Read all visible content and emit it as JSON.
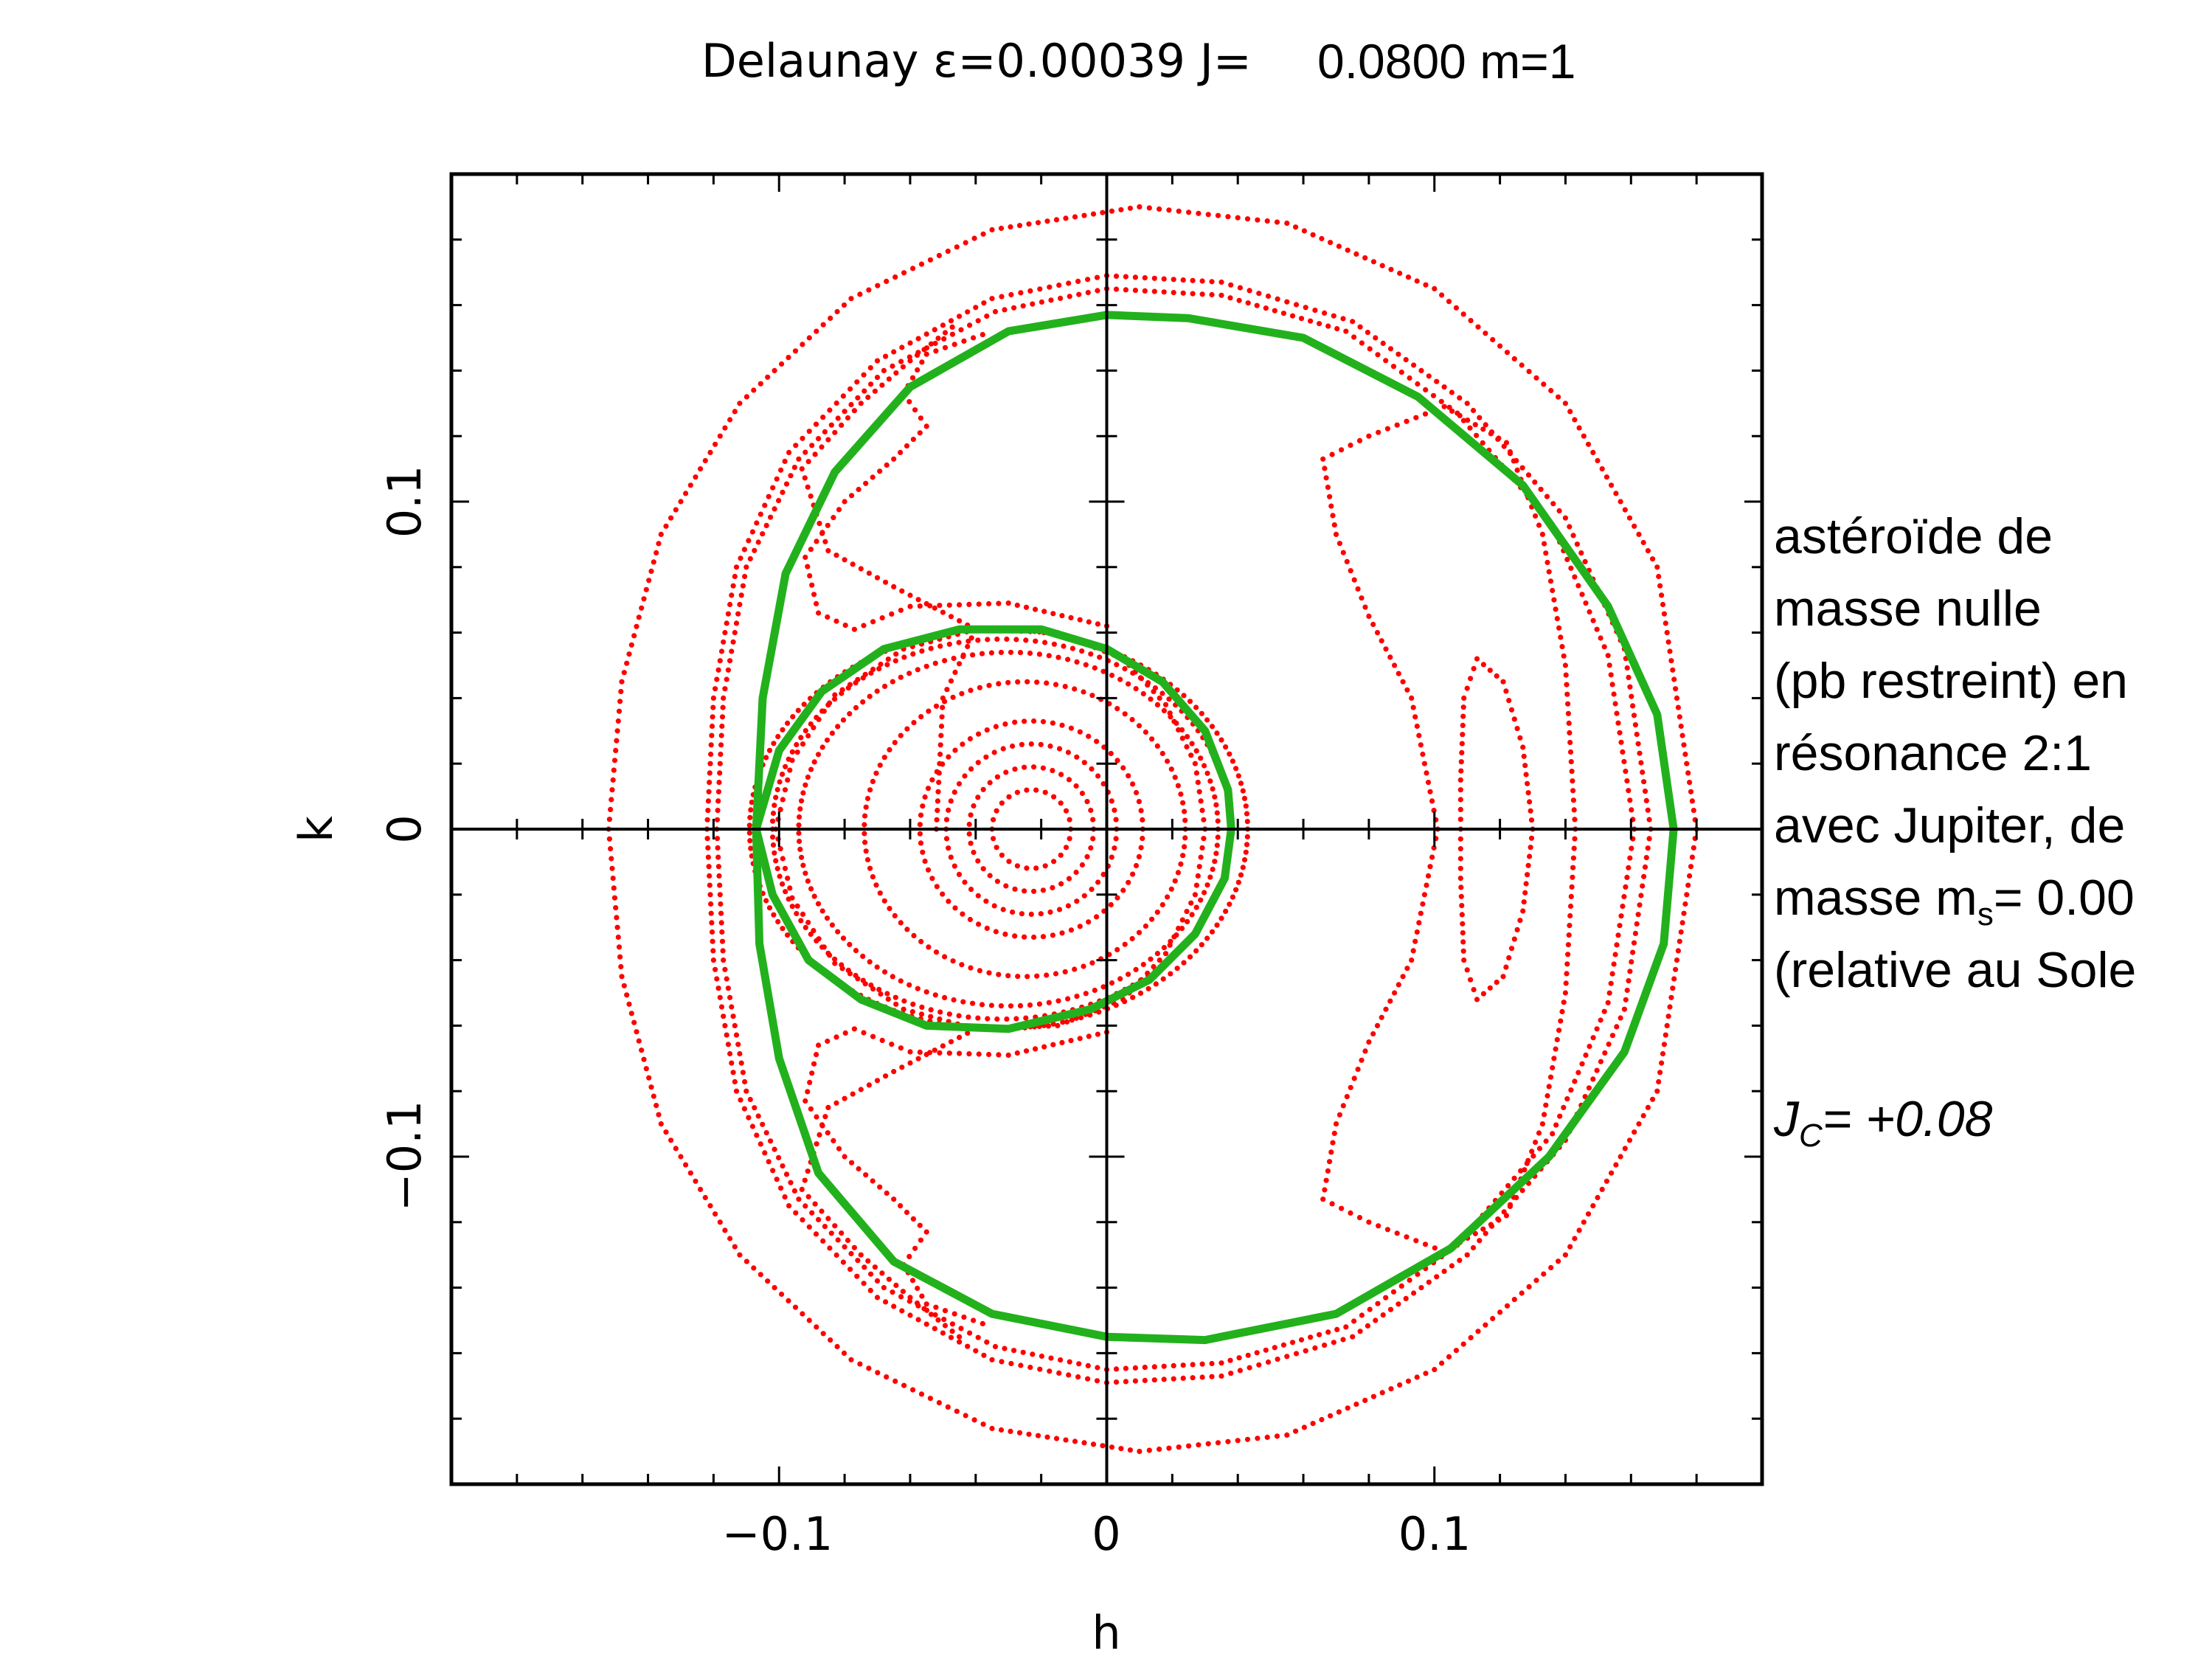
{
  "chart_data": {
    "type": "scatter",
    "title_left": "Delaunay ε=0.00039  J=",
    "title_right": "0.0800 m=1",
    "xlabel": "h",
    "ylabel": "k",
    "xlim": [
      -0.2,
      0.2
    ],
    "ylim": [
      -0.2,
      0.2
    ],
    "xticks": [
      -0.1,
      0,
      0.1
    ],
    "yticks": [
      -0.1,
      0,
      0.1
    ],
    "xtick_labels": [
      "−0.1",
      "0",
      "0.1"
    ],
    "ytick_labels": [
      "−0.1",
      "0",
      "0.1"
    ],
    "grid": false,
    "colors": {
      "trajectories": "#ff0000",
      "separatrix": "#22b11c",
      "axes": "#000000"
    },
    "series": [
      {
        "kind": "dotted-orbit",
        "shape": "ellipse",
        "cx": -0.023,
        "cy": 0.0,
        "rx": 0.012,
        "ry": 0.012
      },
      {
        "kind": "dotted-orbit",
        "shape": "ellipse",
        "cx": -0.023,
        "cy": 0.0,
        "rx": 0.019,
        "ry": 0.019
      },
      {
        "kind": "dotted-orbit",
        "shape": "ellipse",
        "cx": -0.023,
        "cy": 0.0,
        "rx": 0.026,
        "ry": 0.026
      },
      {
        "kind": "dotted-orbit",
        "shape": "ellipse",
        "cx": -0.023,
        "cy": 0.0,
        "rx": 0.034,
        "ry": 0.033
      },
      {
        "kind": "dotted-orbit",
        "shape": "ellipse",
        "cx": -0.025,
        "cy": 0.0,
        "rx": 0.049,
        "ry": 0.045
      },
      {
        "kind": "dotted-orbit",
        "shape": "ellipse",
        "cx": -0.03,
        "cy": 0.0,
        "rx": 0.064,
        "ry": 0.054
      },
      {
        "kind": "dotted-orbit",
        "shape": "ellipse",
        "cx": -0.032,
        "cy": 0.0,
        "rx": 0.07,
        "ry": 0.058
      },
      {
        "kind": "dotted-orbit",
        "shape": "ellipse",
        "cx": -0.033,
        "cy": 0.0,
        "rx": 0.076,
        "ry": 0.061
      },
      {
        "kind": "dotted-orbit",
        "shape": "polyline",
        "points": [
          [
            -0.101,
            0.0
          ],
          [
            -0.096,
            0.021
          ],
          [
            -0.083,
            0.041
          ],
          [
            -0.062,
            0.055
          ],
          [
            -0.04,
            0.061
          ],
          [
            -0.015,
            0.06
          ],
          [
            0.005,
            0.052
          ],
          [
            0.018,
            0.038
          ],
          [
            0.027,
            0.02
          ],
          [
            0.03,
            0.0
          ],
          [
            0.027,
            -0.02
          ],
          [
            0.018,
            -0.038
          ],
          [
            0.005,
            -0.052
          ],
          [
            -0.015,
            -0.06
          ],
          [
            -0.04,
            -0.061
          ],
          [
            -0.062,
            -0.055
          ],
          [
            -0.083,
            -0.041
          ],
          [
            -0.096,
            -0.021
          ],
          [
            -0.101,
            0.0
          ]
        ]
      },
      {
        "kind": "dotted-orbit",
        "shape": "polyline",
        "points": [
          [
            -0.0,
            0.062
          ],
          [
            -0.03,
            0.069
          ],
          [
            -0.06,
            0.068
          ],
          [
            -0.077,
            0.061
          ],
          [
            -0.088,
            0.066
          ],
          [
            -0.092,
            0.083
          ],
          [
            -0.08,
            0.1
          ],
          [
            -0.065,
            0.113
          ],
          [
            -0.055,
            0.123
          ],
          [
            -0.062,
            0.133
          ],
          [
            -0.055,
            0.145
          ],
          [
            -0.035,
            0.152
          ]
        ]
      },
      {
        "kind": "dotted-orbit",
        "shape": "polyline",
        "points": [
          [
            -0.0,
            -0.062
          ],
          [
            -0.03,
            -0.069
          ],
          [
            -0.06,
            -0.068
          ],
          [
            -0.077,
            -0.061
          ],
          [
            -0.088,
            -0.066
          ],
          [
            -0.092,
            -0.083
          ],
          [
            -0.08,
            -0.1
          ],
          [
            -0.065,
            -0.113
          ],
          [
            -0.055,
            -0.123
          ],
          [
            -0.062,
            -0.133
          ],
          [
            -0.055,
            -0.145
          ],
          [
            -0.035,
            -0.152
          ]
        ]
      },
      {
        "kind": "dotted-orbit",
        "shape": "polyline",
        "points": [
          [
            -0.122,
            0.0
          ],
          [
            -0.12,
            0.04
          ],
          [
            -0.113,
            0.08
          ],
          [
            -0.097,
            0.115
          ],
          [
            -0.07,
            0.143
          ],
          [
            -0.035,
            0.162
          ],
          [
            0.0,
            0.169
          ],
          [
            0.035,
            0.167
          ],
          [
            0.075,
            0.155
          ],
          [
            0.11,
            0.13
          ],
          [
            0.14,
            0.095
          ],
          [
            0.158,
            0.055
          ],
          [
            0.166,
            0.0
          ],
          [
            0.158,
            -0.055
          ],
          [
            0.14,
            -0.095
          ],
          [
            0.11,
            -0.13
          ],
          [
            0.075,
            -0.155
          ],
          [
            0.035,
            -0.167
          ],
          [
            0.0,
            -0.169
          ],
          [
            -0.035,
            -0.162
          ],
          [
            -0.07,
            -0.143
          ],
          [
            -0.097,
            -0.115
          ],
          [
            -0.113,
            -0.08
          ],
          [
            -0.12,
            -0.04
          ],
          [
            -0.122,
            0.0
          ]
        ]
      },
      {
        "kind": "dotted-orbit",
        "shape": "polyline",
        "points": [
          [
            -0.119,
            0.0
          ],
          [
            -0.117,
            0.04
          ],
          [
            -0.11,
            0.08
          ],
          [
            -0.094,
            0.113
          ],
          [
            -0.068,
            0.14
          ],
          [
            -0.034,
            0.158
          ],
          [
            0.0,
            0.165
          ],
          [
            0.035,
            0.163
          ],
          [
            0.073,
            0.152
          ],
          [
            0.107,
            0.127
          ],
          [
            0.136,
            0.093
          ],
          [
            0.153,
            0.053
          ],
          [
            0.161,
            0.0
          ],
          [
            0.153,
            -0.053
          ],
          [
            0.136,
            -0.093
          ],
          [
            0.107,
            -0.127
          ],
          [
            0.073,
            -0.152
          ],
          [
            0.035,
            -0.163
          ],
          [
            0.0,
            -0.165
          ],
          [
            -0.034,
            -0.158
          ],
          [
            -0.068,
            -0.14
          ],
          [
            -0.094,
            -0.113
          ],
          [
            -0.11,
            -0.08
          ],
          [
            -0.117,
            -0.04
          ],
          [
            -0.119,
            0.0
          ]
        ]
      },
      {
        "kind": "dotted-orbit",
        "shape": "polyline",
        "points": [
          [
            -0.152,
            0.0
          ],
          [
            -0.148,
            0.045
          ],
          [
            -0.136,
            0.09
          ],
          [
            -0.112,
            0.13
          ],
          [
            -0.078,
            0.162
          ],
          [
            -0.035,
            0.183
          ],
          [
            0.01,
            0.19
          ],
          [
            0.055,
            0.185
          ],
          [
            0.1,
            0.165
          ],
          [
            0.14,
            0.13
          ],
          [
            0.168,
            0.08
          ],
          [
            0.18,
            0.0
          ],
          [
            0.168,
            -0.08
          ],
          [
            0.14,
            -0.13
          ],
          [
            0.1,
            -0.165
          ],
          [
            0.055,
            -0.185
          ],
          [
            0.01,
            -0.19
          ],
          [
            -0.035,
            -0.183
          ],
          [
            -0.078,
            -0.162
          ],
          [
            -0.112,
            -0.13
          ],
          [
            -0.136,
            -0.09
          ],
          [
            -0.148,
            -0.045
          ],
          [
            -0.152,
            0.0
          ]
        ]
      },
      {
        "kind": "dotted-orbit",
        "shape": "polyline",
        "points": [
          [
            0.08,
            0.12
          ],
          [
            0.103,
            0.129
          ],
          [
            0.122,
            0.118
          ],
          [
            0.133,
            0.09
          ],
          [
            0.14,
            0.05
          ],
          [
            0.143,
            0.0
          ],
          [
            0.14,
            -0.05
          ],
          [
            0.133,
            -0.09
          ],
          [
            0.122,
            -0.118
          ],
          [
            0.103,
            -0.129
          ],
          [
            0.08,
            -0.12
          ],
          [
            0.066,
            -0.113
          ],
          [
            0.07,
            -0.09
          ],
          [
            0.08,
            -0.065
          ],
          [
            0.093,
            -0.04
          ],
          [
            0.101,
            0.0
          ],
          [
            0.093,
            0.04
          ],
          [
            0.08,
            0.065
          ],
          [
            0.07,
            0.09
          ],
          [
            0.066,
            0.113
          ],
          [
            0.08,
            0.12
          ]
        ]
      },
      {
        "kind": "dotted-orbit",
        "shape": "polyline",
        "points": [
          [
            0.113,
            0.052
          ],
          [
            0.121,
            0.045
          ],
          [
            0.127,
            0.025
          ],
          [
            0.13,
            0.0
          ],
          [
            0.127,
            -0.025
          ],
          [
            0.121,
            -0.045
          ],
          [
            0.113,
            -0.052
          ],
          [
            0.109,
            -0.04
          ],
          [
            0.108,
            -0.015
          ],
          [
            0.108,
            0.0
          ],
          [
            0.108,
            0.015
          ],
          [
            0.109,
            0.04
          ],
          [
            0.113,
            0.052
          ]
        ]
      },
      {
        "kind": "dotted-orbit",
        "shape": "polyline",
        "points": [
          [
            -0.052,
            0.0
          ],
          [
            -0.05,
            0.04
          ],
          [
            -0.04,
            0.061
          ],
          [
            -0.065,
            0.074
          ],
          [
            -0.085,
            0.085
          ],
          [
            -0.093,
            0.11
          ],
          [
            -0.075,
            0.13
          ],
          [
            -0.06,
            0.143
          ],
          [
            -0.045,
            0.155
          ]
        ]
      },
      {
        "kind": "dotted-orbit",
        "shape": "polyline",
        "points": [
          [
            -0.045,
            -0.155
          ],
          [
            -0.06,
            -0.143
          ],
          [
            -0.075,
            -0.13
          ],
          [
            -0.093,
            -0.11
          ],
          [
            -0.085,
            -0.085
          ],
          [
            -0.065,
            -0.074
          ],
          [
            -0.04,
            -0.061
          ]
        ]
      },
      {
        "kind": "separatrix",
        "shape": "polyline",
        "points": [
          [
            -0.107,
            0.0
          ],
          [
            -0.1,
            0.024
          ],
          [
            -0.087,
            0.042
          ],
          [
            -0.068,
            0.055
          ],
          [
            -0.045,
            0.061
          ],
          [
            -0.02,
            0.061
          ],
          [
            0.0,
            0.055
          ],
          [
            0.017,
            0.045
          ],
          [
            0.03,
            0.03
          ],
          [
            0.037,
            0.012
          ],
          [
            0.038,
            0.0
          ],
          [
            0.036,
            -0.015
          ],
          [
            0.027,
            -0.032
          ],
          [
            0.013,
            -0.046
          ],
          [
            -0.005,
            -0.055
          ],
          [
            -0.03,
            -0.061
          ],
          [
            -0.055,
            -0.06
          ],
          [
            -0.075,
            -0.052
          ],
          [
            -0.091,
            -0.04
          ],
          [
            -0.102,
            -0.02
          ],
          [
            -0.107,
            0.0
          ]
        ]
      },
      {
        "kind": "separatrix",
        "shape": "polyline",
        "points": [
          [
            -0.107,
            0.0
          ],
          [
            -0.105,
            0.04
          ],
          [
            -0.098,
            0.078
          ],
          [
            -0.083,
            0.109
          ],
          [
            -0.06,
            0.135
          ],
          [
            -0.03,
            0.152
          ],
          [
            0.0,
            0.157
          ],
          [
            0.025,
            0.156
          ],
          [
            0.06,
            0.15
          ],
          [
            0.095,
            0.132
          ],
          [
            0.127,
            0.105
          ],
          [
            0.153,
            0.068
          ],
          [
            0.168,
            0.035
          ],
          [
            0.173,
            0.0
          ],
          [
            0.17,
            -0.035
          ],
          [
            0.158,
            -0.068
          ],
          [
            0.135,
            -0.1
          ],
          [
            0.105,
            -0.128
          ],
          [
            0.07,
            -0.148
          ],
          [
            0.03,
            -0.156
          ],
          [
            0.0,
            -0.155
          ],
          [
            -0.035,
            -0.148
          ],
          [
            -0.065,
            -0.132
          ],
          [
            -0.088,
            -0.105
          ],
          [
            -0.1,
            -0.07
          ],
          [
            -0.106,
            -0.035
          ],
          [
            -0.107,
            0.0
          ]
        ]
      }
    ]
  },
  "annotation": {
    "lines": [
      "astéroïde de",
      "masse nulle",
      "(pb restreint) en",
      "résonance 2:1",
      "avec Jupiter, de",
      "masse m",
      "(relative au Sole"
    ],
    "mass_sub": "s",
    "mass_value": "= 0.00",
    "jc_main": "J",
    "jc_sub": "C",
    "jc_value": "= +0.08"
  }
}
